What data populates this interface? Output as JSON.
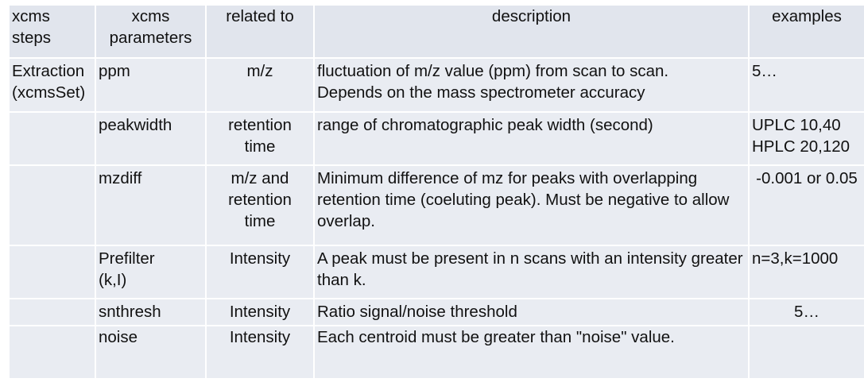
{
  "table": {
    "headers": {
      "step": "xcms\nsteps",
      "parameter": "xcms\nparameters",
      "related": "related to",
      "description": "description",
      "examples": "examples"
    },
    "rows": [
      {
        "step": "Extraction\n(xcmsSet)",
        "parameter": "ppm",
        "related": "m/z",
        "description": "fluctuation of m/z value (ppm) from scan to scan.\nDepends on the mass spectrometer accuracy",
        "examples": "5…"
      },
      {
        "step": "",
        "parameter": "peakwidth",
        "related": "retention\ntime",
        "description": "range of  chromatographic peak width (second)",
        "examples": "UPLC 10,40\nHPLC 20,120"
      },
      {
        "step": "",
        "parameter": "mzdiff",
        "related": "m/z and\nretention\ntime",
        "description": "Minimum difference of mz for peaks with overlapping retention time (coeluting peak). Must be negative to allow overlap.",
        "examples": "-0.001 or 0.05"
      },
      {
        "step": "",
        "parameter": "Prefilter\n(k,I)",
        "related": "Intensity",
        "description": "A peak must be present in n scans with an intensity greater than k.",
        "examples": "n=3,k=1000"
      },
      {
        "step": "",
        "parameter": "snthresh",
        "related": "Intensity",
        "description": "Ratio signal/noise threshold",
        "examples": "5…"
      },
      {
        "step": "",
        "parameter": "noise",
        "related": "Intensity",
        "description": "Each centroid must be greater than \"noise\" value.",
        "examples": ""
      }
    ]
  }
}
